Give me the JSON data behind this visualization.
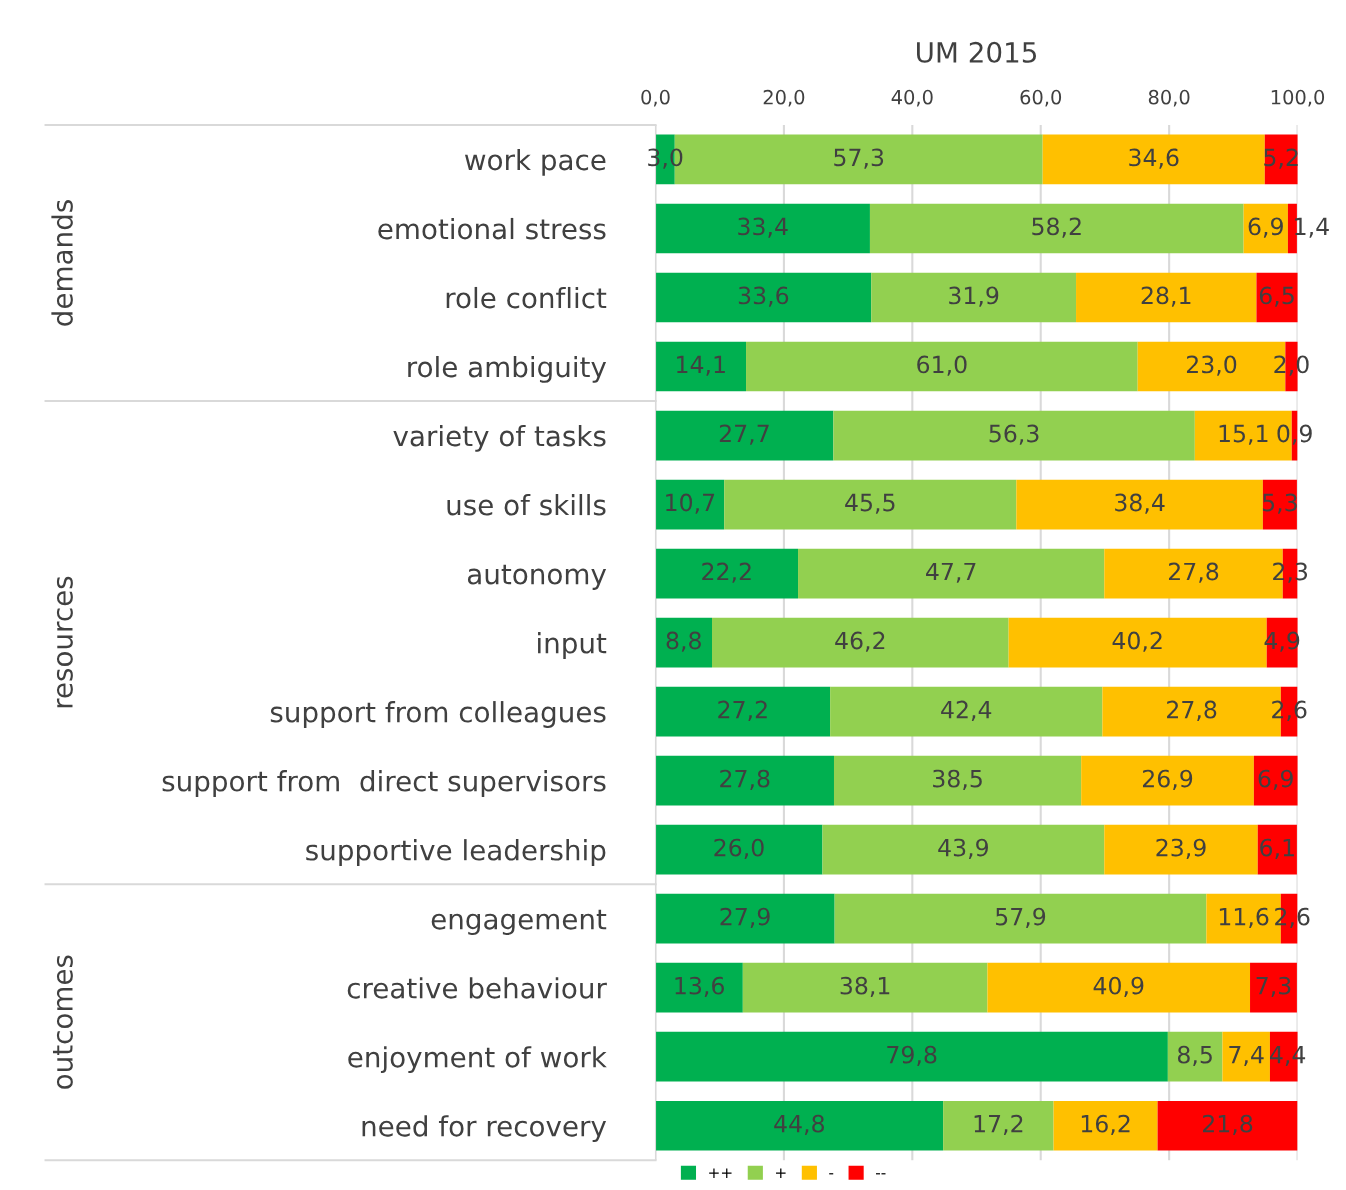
{
  "chart_data": {
    "type": "bar",
    "orientation": "horizontal",
    "stacked": true,
    "title": "UM 2015",
    "categories": [
      "work pace",
      "emotional stress",
      "role conflict",
      "role ambiguity",
      "variety of tasks",
      "use of skills",
      "autonomy",
      "input",
      "support from colleagues",
      "support from  direct supervisors",
      "supportive leadership",
      "engagement",
      "creative behaviour",
      "enjoyment of work",
      "need for recovery"
    ],
    "series": [
      {
        "name": "++",
        "color": "#00b050",
        "values": [
          3.0,
          33.4,
          33.6,
          14.1,
          27.7,
          10.7,
          22.2,
          8.8,
          27.2,
          27.8,
          26.0,
          27.9,
          13.6,
          79.8,
          44.8
        ],
        "value_labels": [
          "3,0",
          "33,4",
          "33,6",
          "14,1",
          "27,7",
          "10,7",
          "22,2",
          "8,8",
          "27,2",
          "27,8",
          "26,0",
          "27,9",
          "13,6",
          "79,8",
          "44,8"
        ]
      },
      {
        "name": "+",
        "color": "#92d050",
        "values": [
          57.3,
          58.2,
          31.9,
          61.0,
          56.3,
          45.5,
          47.7,
          46.2,
          42.4,
          38.5,
          43.9,
          57.9,
          38.1,
          8.5,
          17.2
        ],
        "value_labels": [
          "57,3",
          "58,2",
          "31,9",
          "61,0",
          "56,3",
          "45,5",
          "47,7",
          "46,2",
          "42,4",
          "38,5",
          "43,9",
          "57,9",
          "38,1",
          "8,5",
          "17,2"
        ]
      },
      {
        "name": "-",
        "color": "#ffc000",
        "values": [
          34.6,
          6.9,
          28.1,
          23.0,
          15.1,
          38.4,
          27.8,
          40.2,
          27.8,
          26.9,
          23.9,
          11.6,
          40.9,
          7.4,
          16.2
        ],
        "value_labels": [
          "34,6",
          "6,9",
          "28,1",
          "23,0",
          "15,1",
          "38,4",
          "27,8",
          "40,2",
          "27,8",
          "26,9",
          "23,9",
          "11,6",
          "40,9",
          "7,4",
          "16,2"
        ]
      },
      {
        "name": "--",
        "color": "#ff0000",
        "values": [
          5.2,
          1.4,
          6.5,
          2.0,
          0.9,
          5.3,
          2.3,
          4.9,
          2.6,
          6.9,
          6.1,
          2.6,
          7.3,
          4.4,
          21.8
        ],
        "value_labels": [
          "5,2",
          "1,4",
          "6,5",
          "2,0",
          "0,9",
          "5,3",
          "2,3",
          "4,9",
          "2,6",
          "6,9",
          "6,1",
          "2,6",
          "7,3",
          "4,4",
          "21,8"
        ]
      }
    ],
    "xlim": [
      0,
      100
    ],
    "xticks": [
      {
        "value": 0,
        "label": "0,0"
      },
      {
        "value": 20,
        "label": "20,0"
      },
      {
        "value": 40,
        "label": "40,0"
      },
      {
        "value": 60,
        "label": "60,0"
      },
      {
        "value": 80,
        "label": "80,0"
      },
      {
        "value": 100,
        "label": "100,0"
      }
    ],
    "grid": "x",
    "legend": "bottom",
    "annotations": [
      "demands",
      "resources",
      "outcomes"
    ]
  }
}
